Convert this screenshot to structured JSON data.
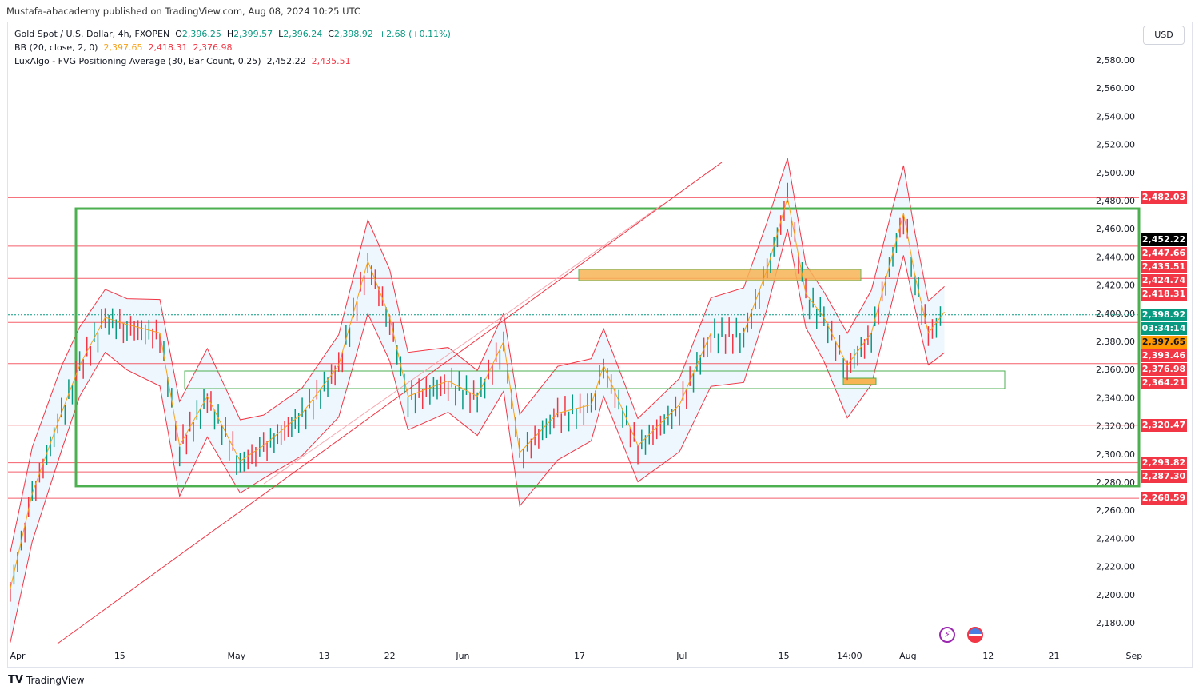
{
  "published": "Mustafa-abacademy published on TradingView.com, Aug 08, 2024 10:25 UTC",
  "legend": {
    "symbol": "Gold Spot / U.S. Dollar, 4h, FXOPEN",
    "o_label": "O",
    "o": "2,396.25",
    "h_label": "H",
    "h": "2,399.57",
    "l_label": "L",
    "l": "2,396.24",
    "c_label": "C",
    "c": "2,398.92",
    "change": "+2.68 (+0.11%)",
    "bb_name": "BB (20, close, 2, 0)",
    "bb_basis": "2,397.65",
    "bb_upper": "2,418.31",
    "bb_lower": "2,376.98",
    "fvg_name": "LuxAlgo - FVG Positioning Average (30, Bar Count, 0.25)",
    "fvg_1": "2,452.22",
    "fvg_2": "2,435.51"
  },
  "currency": "USD",
  "colors": {
    "up": "#089981",
    "down": "#f23645",
    "basis": "#f7a21b",
    "box": "#4caf50",
    "zone": "#f7b555"
  },
  "chart_data": {
    "type": "line",
    "title": "Gold Spot / U.S. Dollar, 4h",
    "yticks": [
      2180,
      2200,
      2220,
      2240,
      2260,
      2280,
      2300,
      2320,
      2340,
      2360,
      2380,
      2400,
      2420,
      2440,
      2460,
      2480,
      2500,
      2520,
      2540,
      2560,
      2580
    ],
    "ylim": [
      2170,
      2600
    ],
    "xticks": [
      "Apr",
      "15",
      "May",
      "13",
      "22",
      "Jun",
      "17",
      "Jul",
      "15",
      "14:00",
      "Aug",
      "12",
      "21",
      "Sep"
    ],
    "xtick_days": [
      0,
      14,
      30,
      42,
      51,
      61,
      77,
      91,
      105,
      114,
      122,
      133,
      142,
      153
    ],
    "price_path_days_close": [
      [
        -1,
        2202
      ],
      [
        2,
        2270
      ],
      [
        6,
        2327
      ],
      [
        8.5,
        2361
      ],
      [
        12,
        2395
      ],
      [
        15,
        2390
      ],
      [
        19.5,
        2384
      ],
      [
        22.2,
        2304
      ],
      [
        26,
        2339
      ],
      [
        30.5,
        2293
      ],
      [
        33.7,
        2304
      ],
      [
        39,
        2327
      ],
      [
        44,
        2361
      ],
      [
        48,
        2435
      ],
      [
        51,
        2395
      ],
      [
        53.5,
        2339
      ],
      [
        59,
        2350
      ],
      [
        63,
        2339
      ],
      [
        66.6,
        2378
      ],
      [
        68.8,
        2299
      ],
      [
        74,
        2327
      ],
      [
        78.6,
        2333
      ],
      [
        80.3,
        2361
      ],
      [
        85,
        2304
      ],
      [
        90.7,
        2333
      ],
      [
        95,
        2384
      ],
      [
        99.5,
        2384
      ],
      [
        102.7,
        2429
      ],
      [
        105.5,
        2480
      ],
      [
        108,
        2412
      ],
      [
        110.5,
        2395
      ],
      [
        113.7,
        2361
      ],
      [
        117,
        2384
      ],
      [
        121.4,
        2469
      ],
      [
        123,
        2424
      ],
      [
        124.8,
        2384
      ],
      [
        127,
        2398.92
      ]
    ],
    "levels": [
      2482.03,
      2447.66,
      2424.74,
      2393.46,
      2364.21,
      2320.47,
      2293.82,
      2287.3,
      2268.59
    ],
    "range_box": [
      2474.3,
      2277.2
    ],
    "price_tags": [
      {
        "label": "2,482.03",
        "color": "#f23645",
        "price": 2482.03
      },
      {
        "label": "2,452.22",
        "color": "#000000",
        "price": 2452.22
      },
      {
        "label": "2,447.66",
        "color": "#f23645",
        "price": 2447.66
      },
      {
        "label": "2,435.51",
        "color": "#f23645",
        "price": 2435.51
      },
      {
        "label": "2,424.74",
        "color": "#f23645",
        "price": 2424.74
      },
      {
        "label": "2,418.31",
        "color": "#f23645",
        "price": 2418.31
      },
      {
        "label": "2,398.92",
        "color": "#089981",
        "price": 2398.92
      },
      {
        "label": "03:34:14",
        "color": "#089981",
        "price": 2390.5
      },
      {
        "label": "2,397.65",
        "color": "#ff9800",
        "price": 2381.5
      },
      {
        "label": "2,393.46",
        "color": "#f23645",
        "price": 2372.3
      },
      {
        "label": "2,376.98",
        "color": "#f23645",
        "price": 2362.8
      },
      {
        "label": "2,364.21",
        "color": "#f23645",
        "price": 2353.3
      },
      {
        "label": "2,320.47",
        "color": "#f23645",
        "price": 2320.47
      },
      {
        "label": "2,293.82",
        "color": "#f23645",
        "price": 2293.82
      },
      {
        "label": "2,287.30",
        "color": "#f23645",
        "price": 2285.3
      },
      {
        "label": "2,268.59",
        "color": "#f23645",
        "price": 2268.59
      }
    ]
  },
  "footer": {
    "brand": "TradingView"
  }
}
